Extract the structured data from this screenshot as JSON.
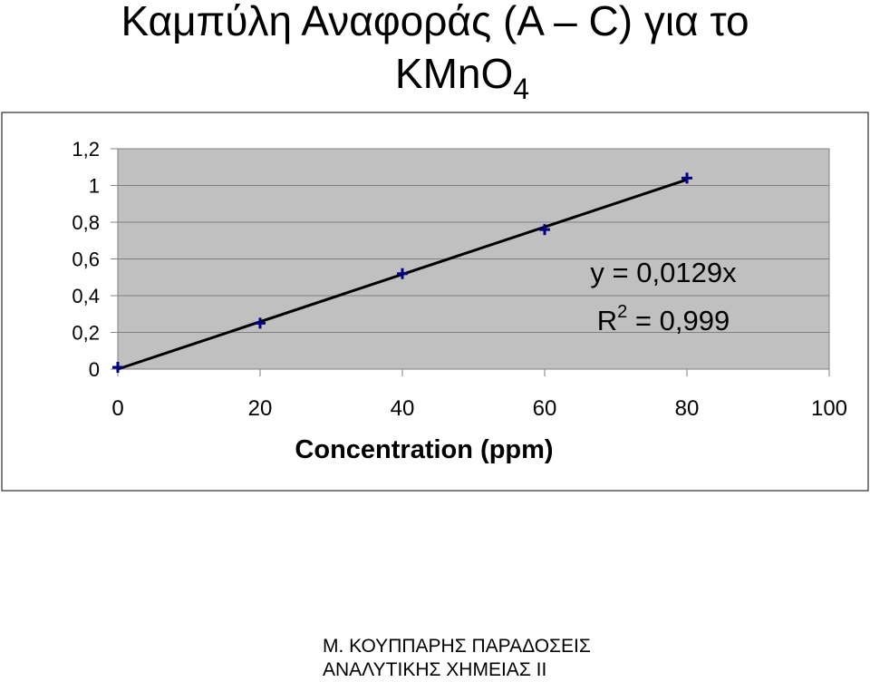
{
  "title": {
    "line1": "Καμπύλη Αναφοράς  (A – C) για το",
    "line2_main": "KMnO",
    "line2_sub": "4"
  },
  "chart_data": {
    "type": "scatter",
    "xlabel": "Concentration (ppm)",
    "ylabel": "",
    "xlim": [
      0,
      100
    ],
    "ylim": [
      0,
      1.2
    ],
    "x_ticks": [
      "0",
      "20",
      "40",
      "60",
      "80",
      "100"
    ],
    "y_ticks": [
      "0",
      "0,2",
      "0,4",
      "0,6",
      "0,8",
      "1",
      "1,2"
    ],
    "series": [
      {
        "x": [
          0,
          20,
          40,
          60,
          80
        ],
        "y": [
          0.01,
          0.25,
          0.52,
          0.76,
          1.04
        ]
      }
    ],
    "trendline": {
      "slope": 0.0129,
      "intercept": 0
    },
    "annotation": {
      "equation": "y = 0,0129x",
      "r_main": "R",
      "r_sup": "2",
      "r_value": " = 0,999"
    },
    "grid": "horizontal",
    "plot_background": "#c0c0c0",
    "marker_color": "#000080",
    "line_color": "#000000"
  },
  "footer": {
    "line1": "Μ. ΚΟΥΠΠΑΡΗΣ ΠΑΡΑΔΟΣΕΙΣ",
    "line2": "ΑΝΑΛΥΤΙΚΗΣ ΧΗΜΕΙΑΣ ΙΙ"
  }
}
